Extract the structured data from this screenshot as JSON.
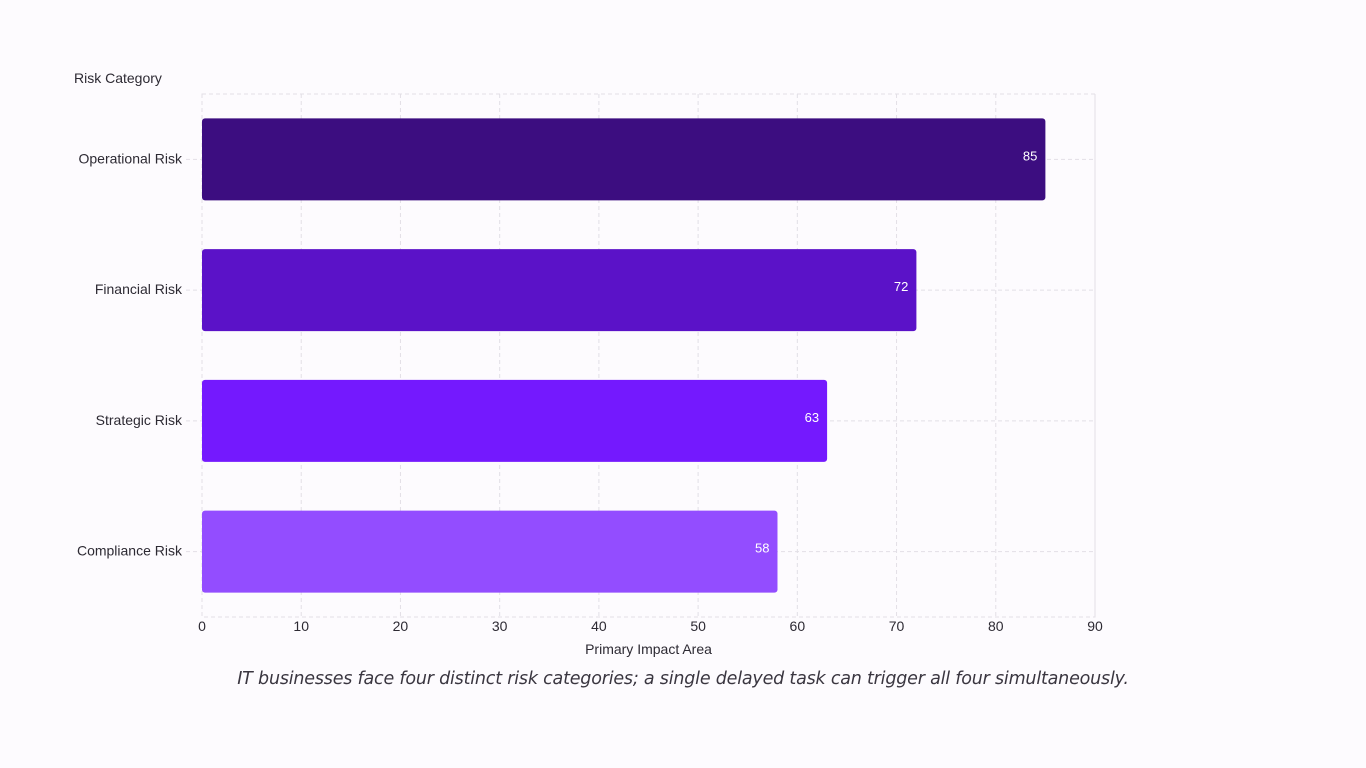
{
  "chart_data": {
    "type": "bar",
    "orientation": "horizontal",
    "categories": [
      "Operational Risk",
      "Financial Risk",
      "Strategic Risk",
      "Compliance Risk"
    ],
    "values": [
      85,
      72,
      63,
      58
    ],
    "colors": [
      "#3c0d80",
      "#5b12c8",
      "#7419fe",
      "#934dff"
    ],
    "ylabel": "Risk Category",
    "xlabel": "Primary Impact Area",
    "xlim": [
      0,
      90
    ],
    "xticks": [
      0,
      10,
      20,
      30,
      40,
      50,
      60,
      70,
      80,
      90
    ],
    "grid": true,
    "data_labels": true
  },
  "caption": "IT businesses face four distinct risk categories; a single delayed task can trigger all four simultaneously."
}
